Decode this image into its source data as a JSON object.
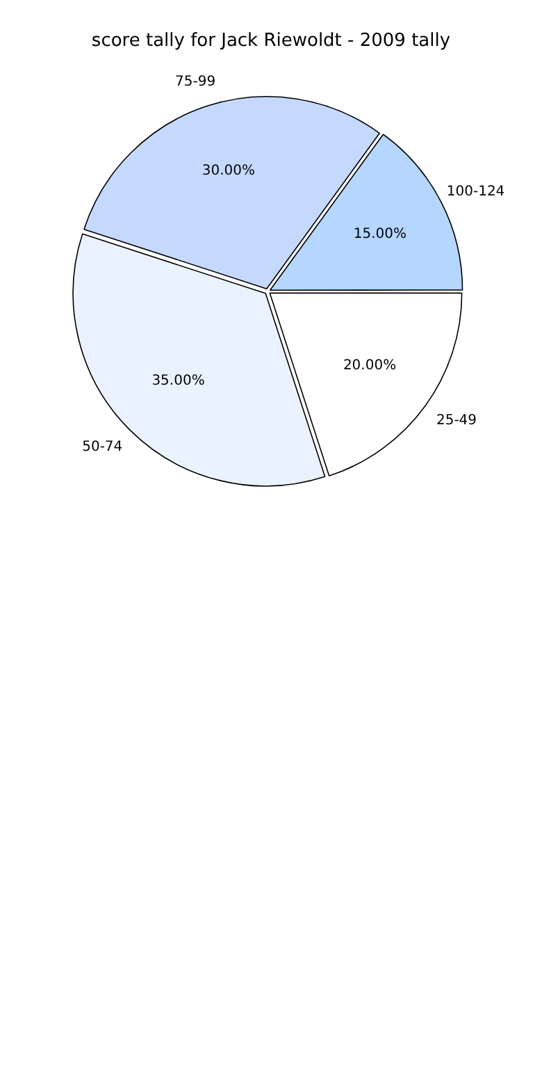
{
  "chart_data": {
    "type": "pie",
    "title": "score tally for Jack Riewoldt - 2009 tally",
    "categories": [
      "25-49",
      "50-74",
      "75-99",
      "100-124"
    ],
    "values": [
      20,
      35,
      30,
      15
    ],
    "colors": [
      "#ffffff",
      "#eaf2ff",
      "#c5d9ff",
      "#b4d6ff"
    ],
    "value_labels": [
      "20.00%",
      "35.00%",
      "30.00%",
      "15.00%"
    ],
    "legend": false
  }
}
